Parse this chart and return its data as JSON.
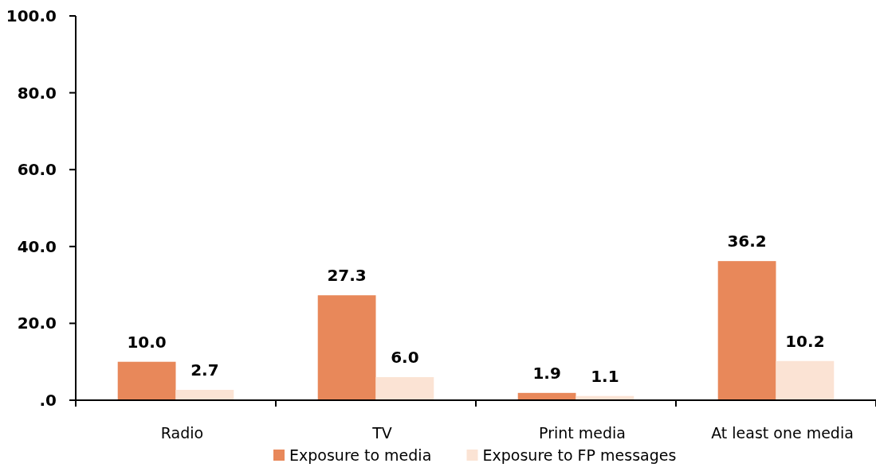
{
  "chart_data": {
    "type": "bar",
    "categories": [
      "Radio",
      "TV",
      "Print media",
      "At least one media"
    ],
    "series": [
      {
        "name": "Exposure to media",
        "color": "#e8885a",
        "values": [
          10.0,
          27.3,
          1.9,
          36.2
        ],
        "value_labels": [
          "10.0",
          "27.3",
          "1.9",
          "36.2"
        ]
      },
      {
        "name": "Exposure to FP messages",
        "color": "#fbe3d4",
        "values": [
          2.7,
          6.0,
          1.1,
          10.2
        ],
        "value_labels": [
          "2.7",
          "6.0",
          "1.1",
          "10.2"
        ]
      }
    ],
    "ylim": [
      0,
      100
    ],
    "yticks": [
      {
        "value": 0,
        "label": ".0"
      },
      {
        "value": 20,
        "label": "20.0"
      },
      {
        "value": 40,
        "label": "40.0"
      },
      {
        "value": 60,
        "label": "60.0"
      },
      {
        "value": 80,
        "label": "80.0"
      },
      {
        "value": 100,
        "label": "100.0"
      }
    ],
    "grid": false,
    "legend": "bottom"
  }
}
